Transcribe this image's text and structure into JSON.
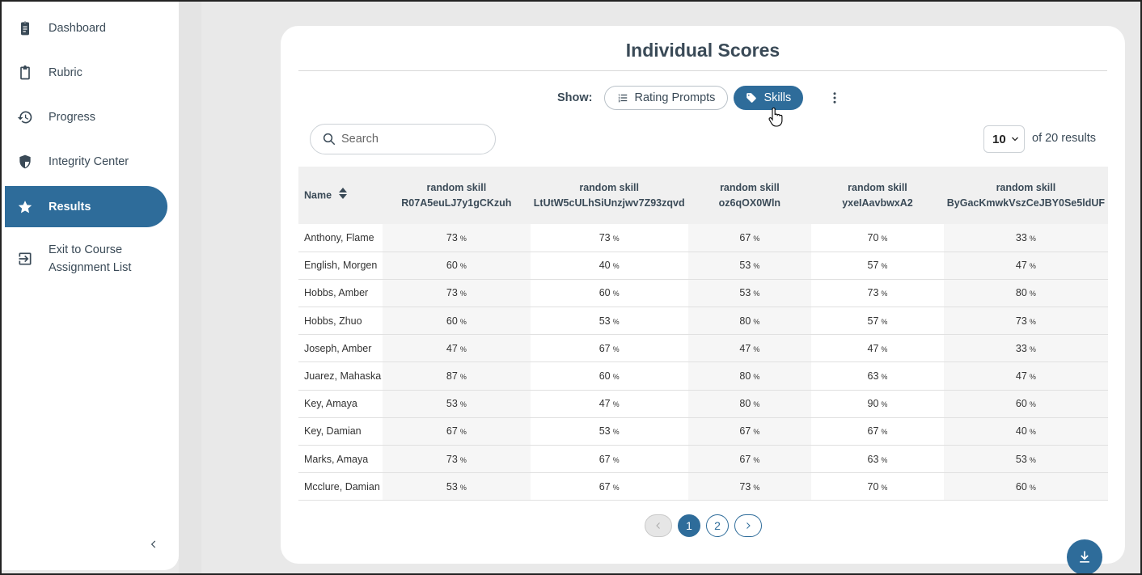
{
  "sidebar": {
    "items": [
      {
        "label": "Dashboard",
        "icon": "clipboard-list-icon"
      },
      {
        "label": "Rubric",
        "icon": "clipboard-icon"
      },
      {
        "label": "Progress",
        "icon": "history-icon"
      },
      {
        "label": "Integrity Center",
        "icon": "shield-icon"
      },
      {
        "label": "Results",
        "icon": "star-icon",
        "active": true
      },
      {
        "label": "Exit to Course Assignment List",
        "icon": "exit-icon"
      }
    ],
    "collapse_icon": "chevron-left-icon"
  },
  "main": {
    "title": "Individual Scores",
    "show_label": "Show:",
    "toggle": {
      "rating_prompts": "Rating Prompts",
      "skills": "Skills",
      "selected": "skills"
    },
    "search": {
      "placeholder": "Search",
      "value": ""
    },
    "per_page": "10",
    "results_text": "of 20 results"
  },
  "table": {
    "name_header": "Name",
    "columns": [
      "random skill R07A5euLJ7y1gCKzuh",
      "random skill LtUtW5cULhSiUnzjwv7Z93zqvd",
      "random skill oz6qOX0Wln",
      "random skill yxeIAavbwxA2",
      "random skill ByGacKmwkVszCeJBY0Se5ldUF"
    ],
    "pct_symbol": "%",
    "rows": [
      {
        "name": "Anthony, Flame",
        "scores": [
          "73",
          "73",
          "67",
          "70",
          "33"
        ]
      },
      {
        "name": "English, Morgen",
        "scores": [
          "60",
          "40",
          "53",
          "57",
          "47"
        ]
      },
      {
        "name": "Hobbs, Amber",
        "scores": [
          "73",
          "60",
          "53",
          "73",
          "80"
        ]
      },
      {
        "name": "Hobbs, Zhuo",
        "scores": [
          "60",
          "53",
          "80",
          "57",
          "73"
        ]
      },
      {
        "name": "Joseph, Amber",
        "scores": [
          "47",
          "67",
          "47",
          "47",
          "33"
        ]
      },
      {
        "name": "Juarez, Mahaska",
        "scores": [
          "87",
          "60",
          "80",
          "63",
          "47"
        ]
      },
      {
        "name": "Key, Amaya",
        "scores": [
          "53",
          "47",
          "80",
          "90",
          "60"
        ]
      },
      {
        "name": "Key, Damian",
        "scores": [
          "67",
          "53",
          "67",
          "67",
          "40"
        ]
      },
      {
        "name": "Marks, Amaya",
        "scores": [
          "73",
          "67",
          "67",
          "63",
          "53"
        ]
      },
      {
        "name": "Mcclure, Damian",
        "scores": [
          "53",
          "67",
          "73",
          "70",
          "60"
        ]
      }
    ]
  },
  "pagination": {
    "pages": [
      "1",
      "2"
    ],
    "current": "1"
  },
  "colors": {
    "accent": "#2e6c9a",
    "text": "#3a4a57",
    "background": "#e9e9e9"
  }
}
